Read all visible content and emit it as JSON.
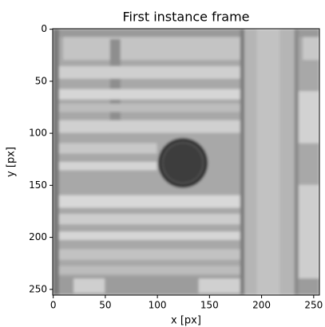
{
  "chart_data": {
    "type": "image",
    "title": "First instance frame",
    "xlabel": "x [px]",
    "ylabel": "y [px]",
    "xlim": [
      -0.5,
      255.5
    ],
    "ylim": [
      255.5,
      -0.5
    ],
    "xticks": [
      0,
      50,
      100,
      150,
      200,
      250
    ],
    "yticks": [
      0,
      50,
      100,
      150,
      200,
      250
    ]
  }
}
